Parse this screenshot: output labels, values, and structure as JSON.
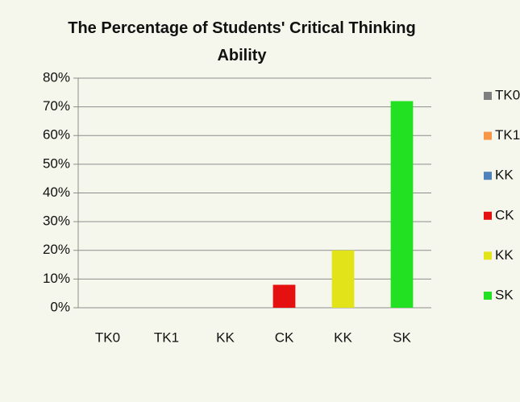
{
  "chart_data": {
    "type": "bar",
    "title": "The Percentage of Students' Critical Thinking Ability",
    "categories": [
      "TK0",
      "TK1",
      "KK",
      "CK",
      "KK",
      "SK"
    ],
    "values": [
      0,
      0,
      0,
      8,
      20,
      72
    ],
    "colors": [
      "#7f7f7f",
      "#f79646",
      "#4f81bd",
      "#e51010",
      "#e3e31a",
      "#22e022"
    ],
    "ylim": [
      0,
      80
    ],
    "yticks": [
      {
        "value": 0,
        "label": "0%"
      },
      {
        "value": 10,
        "label": "10%"
      },
      {
        "value": 20,
        "label": "20%"
      },
      {
        "value": 30,
        "label": "30%"
      },
      {
        "value": 40,
        "label": "40%"
      },
      {
        "value": 50,
        "label": "50%"
      },
      {
        "value": 60,
        "label": "60%"
      },
      {
        "value": 70,
        "label": "70%"
      },
      {
        "value": 80,
        "label": "80%"
      }
    ],
    "grid": true,
    "legend": "right"
  }
}
